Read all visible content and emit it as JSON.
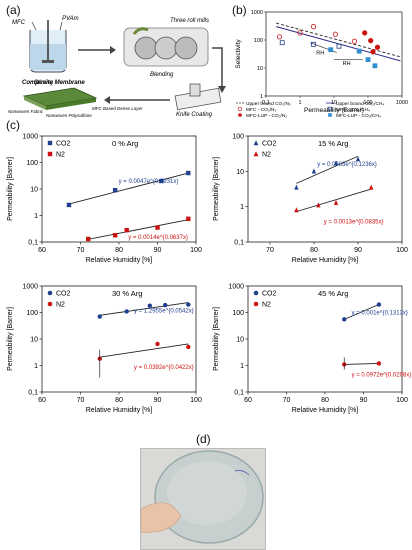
{
  "panel_labels": {
    "a": "(a)",
    "b": "(b)",
    "c": "(c)",
    "d": "(d)"
  },
  "schematic": {
    "mfc": "MFC",
    "pvam": "PVAm",
    "three_roll_mills": "Three roll mills",
    "stirring": "Stirring",
    "blending": "Blending",
    "knife_coating": "Knife Coating",
    "composite_membrane": "Composite Membrane",
    "nonwoven_fabric": "Nonwoven Fabric",
    "nonwoven_polysulfone": "Nonwoven Polysulfone",
    "mfc_dense_layer": "MFC Based Dense Layer"
  },
  "colors": {
    "co2": "#1f3f8f",
    "n2": "#cc1111",
    "fit_co2": "#1f3f8f",
    "fit_n2": "#cc1111"
  },
  "chart_data": [
    {
      "type": "scatter",
      "panel": "b",
      "xlabel": "Permeability (Barrer)",
      "ylabel": "Selectivity",
      "xscale": "log",
      "yscale": "log",
      "xlim": [
        0.1,
        1000
      ],
      "ylim": [
        1,
        1000
      ],
      "xticks": [
        "0.1",
        "1",
        "10",
        "100",
        "1000"
      ],
      "yticks": [
        "1",
        "10",
        "100",
        "1000"
      ],
      "annotations": [
        "RH",
        "RH"
      ],
      "legend": [
        {
          "name": "Upper bound CO₂/N₂",
          "style": "dashed-line"
        },
        {
          "name": "Upper bound CO₂/CH₄",
          "style": "line"
        },
        {
          "name": "MFC - CO₂/N₂",
          "style": "open-circle-red"
        },
        {
          "name": "MFC - CO₂/CH₄",
          "style": "open-square-blue"
        },
        {
          "name": "MFC-LUP - CO₂/N₂",
          "style": "filled-circle-red"
        },
        {
          "name": "MFC-LUP - CO₂/CH₄",
          "style": "filled-square-blue"
        }
      ],
      "series": [
        {
          "name": "MFC - CO₂/N₂",
          "x": [
            0.25,
            1,
            2.5,
            11,
            40
          ],
          "y": [
            130,
            180,
            300,
            160,
            90
          ]
        },
        {
          "name": "MFC - CO₂/CH₄",
          "x": [
            0.3,
            2.5,
            14
          ],
          "y": [
            80,
            70,
            60
          ]
        },
        {
          "name": "MFC-LUP - CO₂/N₂",
          "x": [
            80,
            120,
            190,
            140
          ],
          "y": [
            180,
            95,
            55,
            38
          ]
        },
        {
          "name": "MFC-LUP - CO₂/CH₄",
          "x": [
            8,
            55,
            100,
            160
          ],
          "y": [
            45,
            40,
            20,
            12
          ]
        }
      ]
    },
    {
      "type": "scatter",
      "panel": "c1",
      "title": "0 % Arg",
      "xlabel": "Relative Humidity [%]",
      "ylabel": "Permeability [Barrer]",
      "xlim": [
        60,
        100
      ],
      "ylim": [
        0.1,
        1000
      ],
      "yscale": "log",
      "xticks": [
        "60",
        "70",
        "80",
        "90",
        "100"
      ],
      "yticks": [
        "0,1",
        "1",
        "10",
        "100",
        "1000"
      ],
      "series": [
        {
          "name": "CO2",
          "x": [
            67,
            79,
            91,
            98
          ],
          "y": [
            2.5,
            9,
            20,
            40
          ],
          "fit": "y = 0.0047e^{0.0931x}"
        },
        {
          "name": "N2",
          "x": [
            72,
            79,
            82,
            90,
            98
          ],
          "y": [
            0.13,
            0.18,
            0.28,
            0.35,
            0.75
          ],
          "fit": "y = 0.0014e^{0.0637x}"
        }
      ]
    },
    {
      "type": "scatter",
      "panel": "c2",
      "title": "15 % Arg",
      "xlabel": "Relative Humidity [%]",
      "ylabel": "Permeability [Barrer]",
      "xlim": [
        65,
        100
      ],
      "ylim": [
        0.1,
        100
      ],
      "yscale": "log",
      "xticks": [
        "70",
        "80",
        "90",
        "100"
      ],
      "yticks": [
        "0,1",
        "1",
        "10",
        "100"
      ],
      "series": [
        {
          "name": "CO2",
          "x": [
            76,
            80,
            85,
            90
          ],
          "y": [
            3.5,
            10,
            17,
            22
          ],
          "fit": "y = 0.0003e^{0.1236x}"
        },
        {
          "name": "N2",
          "x": [
            76,
            81,
            85,
            93
          ],
          "y": [
            0.8,
            1.1,
            1.3,
            3.5
          ],
          "fit": "y = 0.0013e^{0.0835x}"
        }
      ]
    },
    {
      "type": "scatter",
      "panel": "c3",
      "title": "30 % Arg",
      "xlabel": "Relative Humidity [%]",
      "ylabel": "Permeability [Barrer]",
      "xlim": [
        60,
        100
      ],
      "ylim": [
        0.1,
        1000
      ],
      "yscale": "log",
      "xticks": [
        "60",
        "70",
        "80",
        "90",
        "100"
      ],
      "yticks": [
        "0,1",
        "1",
        "10",
        "100",
        "1000"
      ],
      "series": [
        {
          "name": "CO2",
          "x": [
            75,
            82,
            88,
            92,
            98
          ],
          "y": [
            70,
            110,
            180,
            190,
            200
          ],
          "fit": "y = 1.2955e^{0.0542x}"
        },
        {
          "name": "N2",
          "x": [
            75,
            90,
            98
          ],
          "y": [
            1.8,
            6.5,
            5
          ],
          "fit": "y = 0.0392e^{0.0422x}"
        }
      ]
    },
    {
      "type": "scatter",
      "panel": "c4",
      "title": "45 % Arg",
      "xlabel": "Relative Humidity [%]",
      "ylabel": "Permeability [Barrer]",
      "xlim": [
        60,
        100
      ],
      "ylim": [
        0.1,
        1000
      ],
      "yscale": "log",
      "xticks": [
        "60",
        "70",
        "80",
        "90",
        "100"
      ],
      "yticks": [
        "0,1",
        "1",
        "10",
        "100",
        "1000"
      ],
      "series": [
        {
          "name": "CO2",
          "x": [
            85,
            94
          ],
          "y": [
            55,
            200
          ],
          "fit": "y = 0.001e^{0.1313x}"
        },
        {
          "name": "N2",
          "x": [
            85,
            94
          ],
          "y": [
            1.1,
            1.2
          ],
          "fit": "y = 0.0972e^{0.0208x}"
        }
      ]
    }
  ]
}
